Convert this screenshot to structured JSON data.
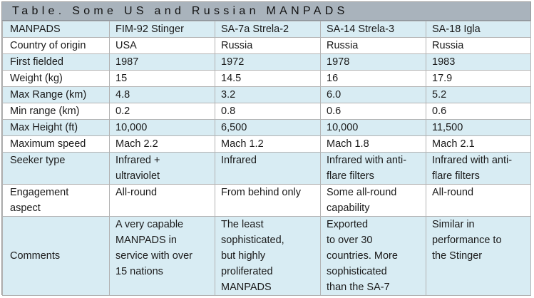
{
  "title": "Table. Some US and Russian MANPADS",
  "headers": [
    "MANPADS",
    "FIM-92 Stinger",
    "SA-7a Strela-2",
    "SA-14 Strela-3",
    "SA-18 Igla"
  ],
  "rows": [
    {
      "label": [
        "Country of origin"
      ],
      "cells": [
        [
          "USA"
        ],
        [
          "Russia"
        ],
        [
          "Russia"
        ],
        [
          "Russia"
        ]
      ]
    },
    {
      "label": [
        "First fielded"
      ],
      "cells": [
        [
          "1987"
        ],
        [
          "1972"
        ],
        [
          "1978"
        ],
        [
          "1983"
        ]
      ]
    },
    {
      "label": [
        "Weight (kg)"
      ],
      "cells": [
        [
          "15"
        ],
        [
          "14.5"
        ],
        [
          "16"
        ],
        [
          "17.9"
        ]
      ]
    },
    {
      "label": [
        "Max Range (km)"
      ],
      "cells": [
        [
          "4.8"
        ],
        [
          "3.2"
        ],
        [
          "6.0"
        ],
        [
          "5.2"
        ]
      ]
    },
    {
      "label": [
        "Min range (km)"
      ],
      "cells": [
        [
          "0.2"
        ],
        [
          "0.8"
        ],
        [
          "0.6"
        ],
        [
          "0.6"
        ]
      ]
    },
    {
      "label": [
        "Max Height (ft)"
      ],
      "cells": [
        [
          "10,000"
        ],
        [
          "6,500"
        ],
        [
          "10,000"
        ],
        [
          "11,500"
        ]
      ]
    },
    {
      "label": [
        "Maximum speed"
      ],
      "cells": [
        [
          "Mach 2.2"
        ],
        [
          "Mach 1.2"
        ],
        [
          "Mach 1.8"
        ],
        [
          "Mach 2.1"
        ]
      ]
    },
    {
      "label": [
        "Seeker type"
      ],
      "cells": [
        [
          "Infrared +",
          "ultraviolet"
        ],
        [
          "Infrared"
        ],
        [
          "Infrared with anti-",
          "flare filters"
        ],
        [
          "Infrared with anti-",
          "flare filters"
        ]
      ]
    },
    {
      "label": [
        "Engagement",
        "aspect"
      ],
      "cells": [
        [
          "All-round"
        ],
        [
          "From behind only"
        ],
        [
          "Some all-round",
          "capability"
        ],
        [
          "All-round"
        ]
      ]
    },
    {
      "label": [
        "Comments"
      ],
      "cells": [
        [
          "A very capable",
          "MANPADS in",
          "service with over",
          "15 nations"
        ],
        [
          "The least",
          "sophisticated,",
          "but highly",
          "proliferated",
          "MANPADS"
        ],
        [
          "Exported",
          "to over 30",
          "countries. More",
          "sophisticated",
          "than the SA-7"
        ],
        [
          "Similar in",
          "performance to",
          "the Stinger"
        ]
      ]
    }
  ],
  "colors": {
    "header_bg": "#d8ecf3",
    "title_bg": "#a9b3bc",
    "border": "#b3b3b3"
  }
}
